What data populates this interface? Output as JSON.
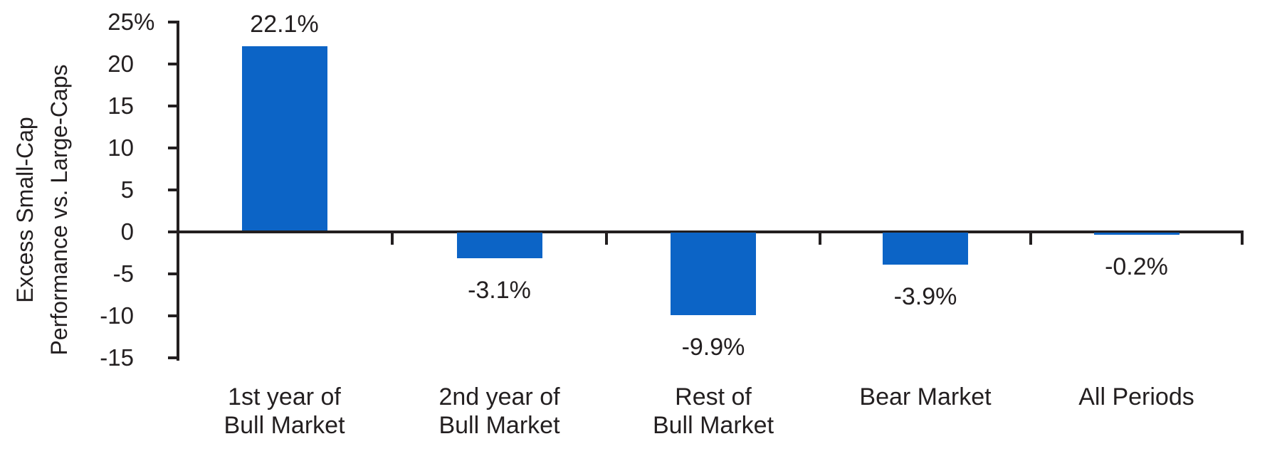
{
  "chart_data": {
    "type": "bar",
    "title": "",
    "categories": [
      {
        "line1": "1st year of",
        "line2": "Bull Market"
      },
      {
        "line1": "2nd year of",
        "line2": "Bull Market"
      },
      {
        "line1": "Rest of",
        "line2": "Bull Market"
      },
      {
        "line1": "Bear Market",
        "line2": ""
      },
      {
        "line1": "All Periods",
        "line2": ""
      }
    ],
    "values": [
      22.1,
      -3.1,
      -9.9,
      -3.9,
      -0.2
    ],
    "value_labels": [
      "22.1%",
      "-3.1%",
      "-9.9%",
      "-3.9%",
      "-0.2%"
    ],
    "ylabel_line1": "Excess Small-Cap",
    "ylabel_line2": "Performance vs. Large-Caps",
    "y_ticks": [
      {
        "label": "25",
        "suffix": "%",
        "value": 25
      },
      {
        "label": "20",
        "value": 20
      },
      {
        "label": "15",
        "value": 15
      },
      {
        "label": "10",
        "value": 10
      },
      {
        "label": "5",
        "value": 5
      },
      {
        "label": "0",
        "value": 0
      },
      {
        "label": "-5",
        "value": -5
      },
      {
        "label": "-10",
        "value": -10
      },
      {
        "label": "-15",
        "value": -15
      }
    ],
    "ylim": [
      -15,
      25
    ],
    "grid": false,
    "legend": null,
    "bar_color": "#0C64C6",
    "axis_color": "#231F20"
  }
}
